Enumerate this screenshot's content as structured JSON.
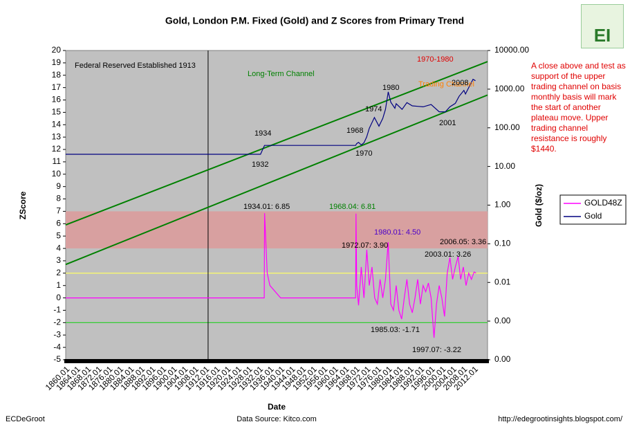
{
  "chart_data": {
    "type": "line",
    "title": "Gold, London P.M. Fixed (Gold) and Z Scores from Primary Trend",
    "x_label": "Date",
    "y_label": "ZScore",
    "y2_label": "Gold ($/oz)",
    "xlim": [
      1860,
      2017
    ],
    "xticks": [
      {
        "value": 1860,
        "label": "1860.01"
      },
      {
        "value": 1864,
        "label": "1864.01"
      },
      {
        "value": 1868,
        "label": "1868.01"
      },
      {
        "value": 1872,
        "label": "1872.01"
      },
      {
        "value": 1876,
        "label": "1876.01"
      },
      {
        "value": 1880,
        "label": "1880.01"
      },
      {
        "value": 1884,
        "label": "1884.01"
      },
      {
        "value": 1888,
        "label": "1888.01"
      },
      {
        "value": 1892,
        "label": "1892.01"
      },
      {
        "value": 1896,
        "label": "1896.01"
      },
      {
        "value": 1900,
        "label": "1900.01"
      },
      {
        "value": 1904,
        "label": "1904.01"
      },
      {
        "value": 1908,
        "label": "1908.01"
      },
      {
        "value": 1912,
        "label": "1912.01"
      },
      {
        "value": 1916,
        "label": "1916.01"
      },
      {
        "value": 1920,
        "label": "1920.01"
      },
      {
        "value": 1924,
        "label": "1924.01"
      },
      {
        "value": 1928,
        "label": "1928.01"
      },
      {
        "value": 1932,
        "label": "1932.01"
      },
      {
        "value": 1936,
        "label": "1936.01"
      },
      {
        "value": 1940,
        "label": "1940.01"
      },
      {
        "value": 1944,
        "label": "1944.01"
      },
      {
        "value": 1948,
        "label": "1948.01"
      },
      {
        "value": 1952,
        "label": "1952.01"
      },
      {
        "value": 1956,
        "label": "1956.01"
      },
      {
        "value": 1960,
        "label": "1960.01"
      },
      {
        "value": 1964,
        "label": "1964.01"
      },
      {
        "value": 1968,
        "label": "1968.01"
      },
      {
        "value": 1972,
        "label": "1972.01"
      },
      {
        "value": 1976,
        "label": "1976.01"
      },
      {
        "value": 1980,
        "label": "1980.01"
      },
      {
        "value": 1984,
        "label": "1984.01"
      },
      {
        "value": 1988,
        "label": "1988.01"
      },
      {
        "value": 1992,
        "label": "1992.01"
      },
      {
        "value": 1996,
        "label": "1996.01"
      },
      {
        "value": 2000,
        "label": "2000.01"
      },
      {
        "value": 2004,
        "label": "2004.01"
      },
      {
        "value": 2008,
        "label": "2008.01"
      },
      {
        "value": 2012,
        "label": "2012.01"
      }
    ],
    "ylim": [
      -5,
      20
    ],
    "yticks": [
      -5,
      -4,
      -3,
      -2,
      -1,
      0,
      1,
      2,
      3,
      4,
      5,
      6,
      7,
      8,
      9,
      10,
      11,
      12,
      13,
      14,
      15,
      16,
      17,
      18,
      19,
      20
    ],
    "y2_log": true,
    "y2lim": [
      0.0001,
      10000
    ],
    "y2ticks": [
      {
        "value": 0.0001,
        "label": "0.00"
      },
      {
        "value": 0.001,
        "label": "0.00"
      },
      {
        "value": 0.01,
        "label": "0.01"
      },
      {
        "value": 0.1,
        "label": "0.10"
      },
      {
        "value": 1,
        "label": "1.00"
      },
      {
        "value": 10,
        "label": "10.00"
      },
      {
        "value": 100,
        "label": "100.00"
      },
      {
        "value": 1000,
        "label": "1000.00"
      },
      {
        "value": 10000,
        "label": "10000.00"
      }
    ],
    "plot_background": "#c0c0c0",
    "bands": [
      {
        "from": 4,
        "to": 7,
        "color": "#d8a0a0"
      }
    ],
    "hlines": [
      {
        "value": 2,
        "color": "#ffff66"
      },
      {
        "value": -2,
        "color": "#33cc33"
      }
    ],
    "vlines": [
      {
        "value": 1913,
        "color": "#000000"
      }
    ],
    "trend_lines": [
      {
        "x": [
          1860,
          2017
        ],
        "y": [
          5.9,
          19.1
        ],
        "color": "#008000"
      },
      {
        "x": [
          1860,
          2017
        ],
        "y": [
          2.7,
          16.4
        ],
        "color": "#008000"
      }
    ],
    "series": [
      {
        "name": "GOLD48Z",
        "color": "#ff00ff",
        "x": [
          1860,
          1933.9,
          1934.01,
          1935,
          1936,
          1938,
          1940,
          1967.9,
          1968.04,
          1968.3,
          1969,
          1970,
          1971,
          1972.07,
          1973,
          1974,
          1975,
          1976,
          1977,
          1978,
          1979,
          1980.01,
          1981,
          1982,
          1983,
          1984,
          1985.03,
          1986,
          1987,
          1988,
          1989,
          1990,
          1991,
          1992,
          1993,
          1994,
          1995,
          1996,
          1997.07,
          1998,
          1999,
          2000,
          2001,
          2002,
          2003.01,
          2004,
          2005,
          2006.05,
          2007,
          2008,
          2009,
          2010,
          2011,
          2012,
          2012.7
        ],
        "values": [
          0,
          0,
          6.85,
          2,
          1,
          0.5,
          0,
          0,
          6.81,
          1,
          -0.6,
          2.5,
          0,
          3.9,
          1,
          2.5,
          0,
          -0.5,
          1.5,
          0,
          1.5,
          4.5,
          -0.5,
          -1,
          1,
          -1,
          -1.71,
          0,
          1.5,
          -0.5,
          -1.2,
          0,
          1.5,
          -0.5,
          1,
          0.5,
          1.2,
          0,
          -3.22,
          -0.5,
          1,
          0,
          -1.5,
          2,
          3.26,
          1.5,
          2.5,
          3.36,
          1.5,
          2.5,
          1,
          2,
          1.5,
          2.1,
          2
        ]
      },
      {
        "name": "Gold",
        "color": "#000080",
        "axis": "y2",
        "x": [
          1860,
          1932.5,
          1934,
          1967.9,
          1968.3,
          1969,
          1970,
          1971,
          1972,
          1973,
          1974.9,
          1976.6,
          1978,
          1979,
          1980.05,
          1981,
          1982.5,
          1983,
          1985.2,
          1987,
          1989,
          1991,
          1993,
          1996,
          1999,
          2001.3,
          2003,
          2005,
          2006.4,
          2008.2,
          2008.8,
          2010,
          2011.6,
          2012.5
        ],
        "values": [
          20.67,
          20.67,
          35,
          35,
          39,
          42,
          36,
          41,
          58,
          97,
          185,
          110,
          175,
          300,
          850,
          460,
          320,
          420,
          300,
          450,
          370,
          360,
          350,
          400,
          260,
          260,
          350,
          430,
          650,
          930,
          750,
          1100,
          1800,
          1650
        ]
      }
    ],
    "legend": "right",
    "annotations": [
      {
        "text": "Federal Reserved Established 1913",
        "color": "#000000"
      },
      {
        "text": "Long-Term Channel",
        "color": "#008000"
      },
      {
        "text": "Trading Channel",
        "color": "#ff8000"
      },
      {
        "text": "1970-1980",
        "color": "#e00000"
      },
      {
        "text": "1934",
        "color": "#000000"
      },
      {
        "text": "1932",
        "color": "#000000"
      },
      {
        "text": "1968",
        "color": "#000000"
      },
      {
        "text": "1970",
        "color": "#000000"
      },
      {
        "text": "1974",
        "color": "#000000"
      },
      {
        "text": "1980",
        "color": "#000000"
      },
      {
        "text": "2001",
        "color": "#000000"
      },
      {
        "text": "2008",
        "color": "#000000"
      },
      {
        "text": "1934.01: 6.85",
        "color": "#000000"
      },
      {
        "text": "1968.04: 6.81",
        "color": "#008000"
      },
      {
        "text": "1980.01: 4.50",
        "color": "#4b00c8"
      },
      {
        "text": "1972.07: 3.90",
        "color": "#000000"
      },
      {
        "text": "2006.05: 3.36",
        "color": "#000000"
      },
      {
        "text": "2003.01: 3.26",
        "color": "#000000"
      },
      {
        "text": "1985.03: -1.71",
        "color": "#000000"
      },
      {
        "text": "1997.07: -3.22",
        "color": "#000000"
      }
    ],
    "note": "A close above and test as support of the upper trading channel on basis monthly basis will mark the start of another plateau move. Upper trading channel resistance is roughly $1440.",
    "logo": "EI",
    "footer_left": "ECDeGroot",
    "footer_center": "Data Source:  Kitco.com",
    "footer_right": "http://edegrootinsights.blogspot.com/"
  }
}
